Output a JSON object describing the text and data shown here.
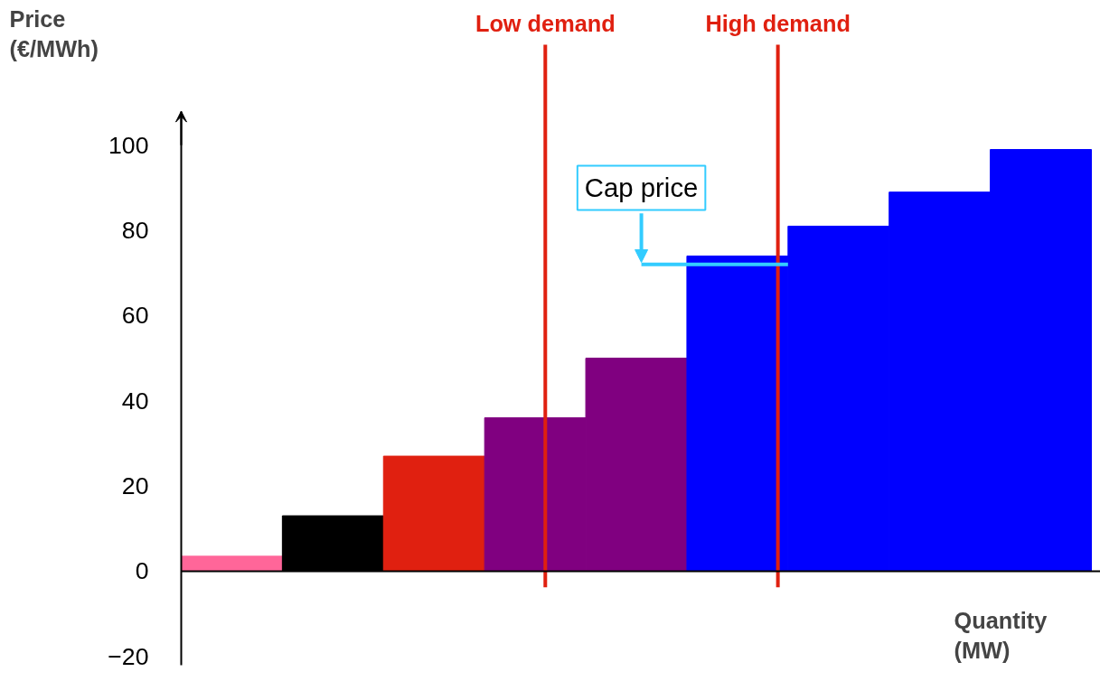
{
  "chart_data": {
    "type": "bar",
    "ylabel": "Price (€/MWh)",
    "xlabel": "Quantity (MW)",
    "categories": [
      null,
      null,
      null,
      null,
      null,
      null,
      null,
      null,
      null
    ],
    "values": [
      3.5,
      13,
      27,
      36,
      50,
      74,
      81,
      89,
      99
    ],
    "colors": [
      "#ff6699",
      "#000000",
      "#e02010",
      "#800080",
      "#800080",
      "#0000ff",
      "#0000ff",
      "#0000ff",
      "#0000ff"
    ],
    "ylim": [
      -22,
      108
    ],
    "yticks": [
      -20,
      0,
      20,
      40,
      60,
      80,
      100
    ],
    "tick_labels": "y",
    "annotations": [
      "Low demand",
      "High demand"
    ],
    "ref_lines": [
      {
        "axis": "y",
        "value": 72,
        "label": "Cap price",
        "color": "#33ccff"
      }
    ]
  }
}
